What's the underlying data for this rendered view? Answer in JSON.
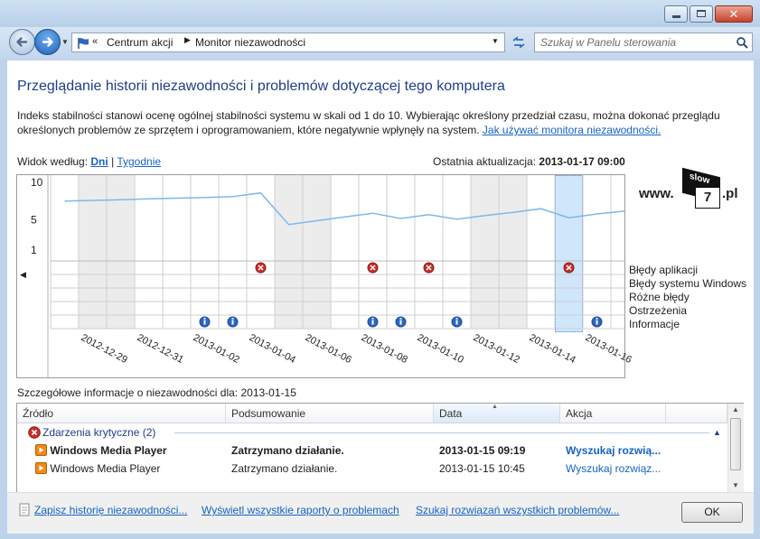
{
  "window": {
    "breadcrumb": [
      "Centrum akcji",
      "Monitor niezawodności"
    ],
    "search_placeholder": "Szukaj w Panelu sterowania"
  },
  "header": {
    "title": "Przeglądanie historii niezawodności i problemów dotyczącej tego komputera",
    "description_line1": "Indeks stabilności stanowi ocenę ogólnej stabilności systemu w skali od 1 do 10. Wybierając określony przedział czasu, można dokonać przeglądu",
    "description_line2": "określonych problemów ze sprzętem i oprogramowaniem, które negatywnie wpłynęły na system.",
    "help_link": "Jak używać monitora niezawodności."
  },
  "view": {
    "label": "Widok według:",
    "days": "Dni",
    "separator": "|",
    "weeks": "Tygodnie",
    "last_update_label": "Ostatnia aktualizacja:",
    "last_update_value": "2013-01-17 09:00"
  },
  "watermark": {
    "prefix": "www.",
    "digit": "7",
    "suffix": ".pl",
    "badge": "slow"
  },
  "chart_data": {
    "type": "line",
    "y_ticks": [
      "10",
      "5",
      "1"
    ],
    "ylim": [
      1,
      10
    ],
    "dates": [
      "2012-12-28",
      "2012-12-29",
      "2012-12-30",
      "2012-12-31",
      "2013-01-01",
      "2013-01-02",
      "2013-01-03",
      "2013-01-04",
      "2013-01-05",
      "2013-01-06",
      "2013-01-07",
      "2013-01-08",
      "2013-01-09",
      "2013-01-10",
      "2013-01-11",
      "2013-01-12",
      "2013-01-13",
      "2013-01-14",
      "2013-01-15",
      "2013-01-16",
      "2013-01-17"
    ],
    "x_tick_labels": [
      "2012-12-29",
      "2012-12-31",
      "2013-01-02",
      "2013-01-04",
      "2013-01-06",
      "2013-01-08",
      "2013-01-10",
      "2013-01-12",
      "2013-01-14",
      "2013-01-16"
    ],
    "stability_index": [
      7.5,
      7.6,
      7.7,
      7.8,
      7.9,
      8.0,
      8.1,
      8.6,
      4.4,
      4.9,
      5.4,
      5.9,
      5.2,
      5.7,
      5.1,
      5.6,
      6.0,
      6.5,
      5.3,
      5.8,
      6.2
    ],
    "selected_date": "2013-01-15",
    "rows": [
      "Błędy aplikacji",
      "Błędy systemu Windows",
      "Różne błędy",
      "Ostrzeżenia",
      "Informacje"
    ],
    "application_errors": [
      "2013-01-04",
      "2013-01-08",
      "2013-01-10",
      "2013-01-15"
    ],
    "information_events": [
      "2013-01-02",
      "2013-01-03",
      "2013-01-08",
      "2013-01-09",
      "2013-01-11",
      "2013-01-16"
    ],
    "colors": {
      "line": "#7fb7ec",
      "error": "#c8312a",
      "info": "#2a67c2",
      "selection": "#cfe6fb",
      "shade": "#ececec"
    }
  },
  "details": {
    "label": "Szczegółowe informacje o niezawodności dla:",
    "date": "2013-01-15",
    "columns": [
      "Źródło",
      "Podsumowanie",
      "Data",
      "Akcja"
    ],
    "group_label": "Zdarzenia krytyczne (2)",
    "rows": [
      {
        "source": "Windows Media Player",
        "summary": "Zatrzymano działanie.",
        "date": "2013-01-15 09:19",
        "action": "Wyszukaj rozwią..."
      },
      {
        "source": "Windows Media Player",
        "summary": "Zatrzymano działanie.",
        "date": "2013-01-15 10:45",
        "action": "Wyszukaj rozwiąz..."
      }
    ]
  },
  "footer": {
    "save_link": "Zapisz historię niezawodności...",
    "reports_link": "Wyświetl wszystkie raporty o problemach",
    "solutions_link": "Szukaj rozwiązań wszystkich problemów...",
    "ok_label": "OK"
  }
}
